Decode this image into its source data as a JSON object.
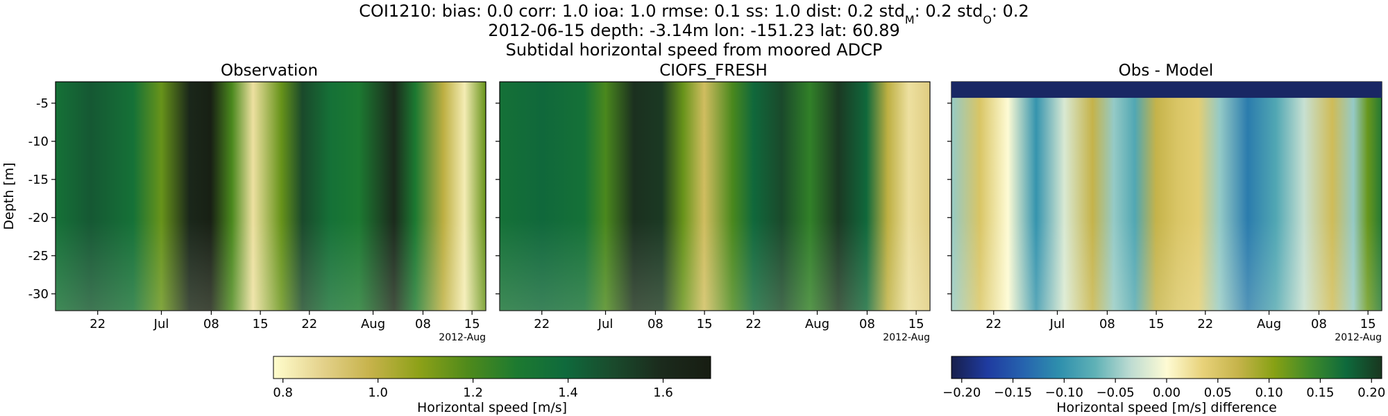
{
  "figure": {
    "title_lines": [
      "COI1210: bias: 0.0  corr: 1.0  ioa: 1.0  rmse: 0.1  ss: 1.0  dist: 0.2  std",
      "2012-06-15 depth: -3.14m lon: -151.23 lat: 60.89",
      "Subtidal horizontal speed from moored ADCP"
    ],
    "title_stats": {
      "std_m_base": "std",
      "std_m_sub": "M",
      "std_m_value": ": 0.2",
      "std_o_base": "std",
      "std_o_sub": "O",
      "std_o_value": ": 0.2"
    }
  },
  "chart_data": [
    {
      "type": "heatmap",
      "title": "Observation",
      "ylabel": "Depth [m]",
      "xlabel": "",
      "x_tick_labels": [
        "22",
        "Jul",
        "08",
        "15",
        "22",
        "Aug",
        "08",
        "15"
      ],
      "x_offset_label": "2012-Aug",
      "y_tick_labels": [
        "-5",
        "-10",
        "-15",
        "-20",
        "-25",
        "-30"
      ],
      "y_ticks": [
        -5,
        -10,
        -15,
        -20,
        -25,
        -30
      ],
      "ylim": [
        -32.2,
        -2.2
      ],
      "time_range": [
        "2012-06-15",
        "2012-08-15"
      ],
      "colormap": "speed",
      "clim": [
        0.78,
        1.7
      ],
      "speed_profile": [
        {
          "date": "2012-06-15",
          "value": 1.35
        },
        {
          "date": "2012-06-20",
          "value": 1.45
        },
        {
          "date": "2012-06-26",
          "value": 1.35
        },
        {
          "date": "2012-06-30",
          "value": 1.15
        },
        {
          "date": "2012-07-04",
          "value": 1.62
        },
        {
          "date": "2012-07-07",
          "value": 1.68
        },
        {
          "date": "2012-07-10",
          "value": 1.2
        },
        {
          "date": "2012-07-13",
          "value": 0.85
        },
        {
          "date": "2012-07-17",
          "value": 1.15
        },
        {
          "date": "2012-07-20",
          "value": 1.5
        },
        {
          "date": "2012-07-24",
          "value": 1.35
        },
        {
          "date": "2012-07-28",
          "value": 1.3
        },
        {
          "date": "2012-08-02",
          "value": 1.6
        },
        {
          "date": "2012-08-05",
          "value": 1.3
        },
        {
          "date": "2012-08-09",
          "value": 1.0
        },
        {
          "date": "2012-08-12",
          "value": 0.82
        },
        {
          "date": "2012-08-15",
          "value": 1.15
        }
      ]
    },
    {
      "type": "heatmap",
      "title": "CIOFS_FRESH",
      "ylabel": "",
      "xlabel": "",
      "x_tick_labels": [
        "22",
        "Jul",
        "08",
        "15",
        "22",
        "Aug",
        "08",
        "15"
      ],
      "x_offset_label": "2012-Aug",
      "y_ticks": [
        -5,
        -10,
        -15,
        -20,
        -25,
        -30
      ],
      "ylim": [
        -32.2,
        -2.2
      ],
      "time_range": [
        "2012-06-15",
        "2012-08-15"
      ],
      "colormap": "speed",
      "clim": [
        0.78,
        1.7
      ],
      "speed_profile": [
        {
          "date": "2012-06-15",
          "value": 1.35
        },
        {
          "date": "2012-06-21",
          "value": 1.4
        },
        {
          "date": "2012-06-27",
          "value": 1.35
        },
        {
          "date": "2012-06-30",
          "value": 1.2
        },
        {
          "date": "2012-07-04",
          "value": 1.58
        },
        {
          "date": "2012-07-08",
          "value": 1.55
        },
        {
          "date": "2012-07-11",
          "value": 1.15
        },
        {
          "date": "2012-07-14",
          "value": 0.95
        },
        {
          "date": "2012-07-18",
          "value": 1.2
        },
        {
          "date": "2012-07-21",
          "value": 1.4
        },
        {
          "date": "2012-07-25",
          "value": 1.5
        },
        {
          "date": "2012-07-29",
          "value": 1.25
        },
        {
          "date": "2012-08-02",
          "value": 1.55
        },
        {
          "date": "2012-08-06",
          "value": 1.4
        },
        {
          "date": "2012-08-09",
          "value": 1.0
        },
        {
          "date": "2012-08-12",
          "value": 0.85
        },
        {
          "date": "2012-08-15",
          "value": 0.9
        }
      ]
    },
    {
      "type": "heatmap",
      "title": "Obs - Model",
      "ylabel": "",
      "xlabel": "",
      "x_tick_labels": [
        "22",
        "Jul",
        "08",
        "15",
        "22",
        "Aug",
        "08",
        "15"
      ],
      "x_offset_label": "2012-Aug",
      "y_ticks": [
        -5,
        -10,
        -15,
        -20,
        -25,
        -30
      ],
      "ylim": [
        -32.2,
        -2.2
      ],
      "time_range": [
        "2012-06-15",
        "2012-08-15"
      ],
      "colormap": "diff",
      "clim": [
        -0.21,
        0.21
      ],
      "surface_layer_value": -0.2,
      "diff_profile": [
        {
          "date": "2012-06-15",
          "value": -0.05
        },
        {
          "date": "2012-06-19",
          "value": 0.05
        },
        {
          "date": "2012-06-23",
          "value": 0.0
        },
        {
          "date": "2012-06-27",
          "value": -0.1
        },
        {
          "date": "2012-07-01",
          "value": -0.02
        },
        {
          "date": "2012-07-05",
          "value": 0.07
        },
        {
          "date": "2012-07-08",
          "value": -0.05
        },
        {
          "date": "2012-07-11",
          "value": -0.08
        },
        {
          "date": "2012-07-14",
          "value": 0.07
        },
        {
          "date": "2012-07-17",
          "value": 0.05
        },
        {
          "date": "2012-07-20",
          "value": 0.04
        },
        {
          "date": "2012-07-23",
          "value": -0.05
        },
        {
          "date": "2012-07-27",
          "value": -0.12
        },
        {
          "date": "2012-07-31",
          "value": -0.08
        },
        {
          "date": "2012-08-04",
          "value": -0.03
        },
        {
          "date": "2012-08-08",
          "value": 0.06
        },
        {
          "date": "2012-08-11",
          "value": -0.05
        },
        {
          "date": "2012-08-13",
          "value": 0.12
        },
        {
          "date": "2012-08-15",
          "value": 0.16
        }
      ]
    }
  ],
  "colorbars": [
    {
      "label": "Horizontal speed [m/s]",
      "range": [
        0.78,
        1.7
      ],
      "tick_values": [
        0.8,
        1.0,
        1.2,
        1.4,
        1.6
      ],
      "tick_labels": [
        "0.8",
        "1.0",
        "1.2",
        "1.4",
        "1.6"
      ],
      "colormap": "speed"
    },
    {
      "label": "Horizontal speed [m/s] difference",
      "range": [
        -0.21,
        0.21
      ],
      "tick_values": [
        -0.2,
        -0.15,
        -0.1,
        -0.05,
        0.0,
        0.05,
        0.1,
        0.15,
        0.2
      ],
      "tick_labels": [
        "−0.20",
        "−0.15",
        "−0.10",
        "−0.05",
        "0.00",
        "0.05",
        "0.10",
        "0.15",
        "0.20"
      ],
      "colormap": "diff"
    }
  ],
  "colormaps": {
    "speed": [
      "#fffdcd",
      "#e4d28c",
      "#c6b24a",
      "#8da118",
      "#4f8a1b",
      "#1d7a30",
      "#0f6a3c",
      "#1a4a2c",
      "#1b2a1c",
      "#171d12"
    ],
    "diff": [
      "#171f4c",
      "#1f3ba0",
      "#2663ae",
      "#2e8fad",
      "#5fb1b6",
      "#bedcd2",
      "#fefbd4",
      "#e8d27a",
      "#c5b34a",
      "#87a114",
      "#3f8a2a",
      "#0e6a3c",
      "#19361f"
    ]
  }
}
